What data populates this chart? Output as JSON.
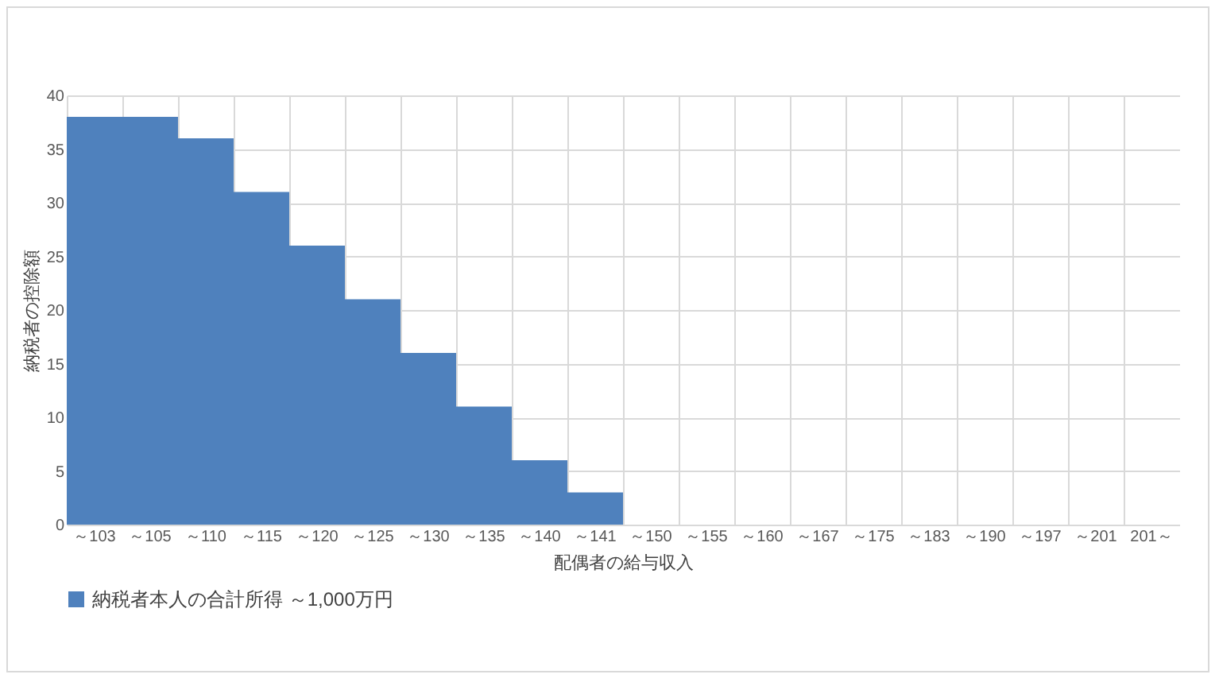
{
  "chart_data": {
    "type": "bar",
    "xlabel": "配偶者の給与収入",
    "ylabel": "納税者の控除額",
    "categories": [
      "～103",
      "～105",
      "～110",
      "～115",
      "～120",
      "～125",
      "～130",
      "～135",
      "～140",
      "～141",
      "～150",
      "～155",
      "～160",
      "～167",
      "～175",
      "～183",
      "～190",
      "～197",
      "～201",
      "201～"
    ],
    "series": [
      {
        "name": "納税者本人の合計所得 ～1,000万円",
        "color": "#4f81bd",
        "values": [
          38,
          38,
          36,
          31,
          26,
          21,
          16,
          11,
          6,
          3,
          0,
          0,
          0,
          0,
          0,
          0,
          0,
          0,
          0,
          0
        ]
      }
    ],
    "ylim": [
      0,
      40
    ],
    "yticks": [
      0,
      5,
      10,
      15,
      20,
      25,
      30,
      35,
      40
    ],
    "grid": true,
    "legend": "bottom"
  }
}
